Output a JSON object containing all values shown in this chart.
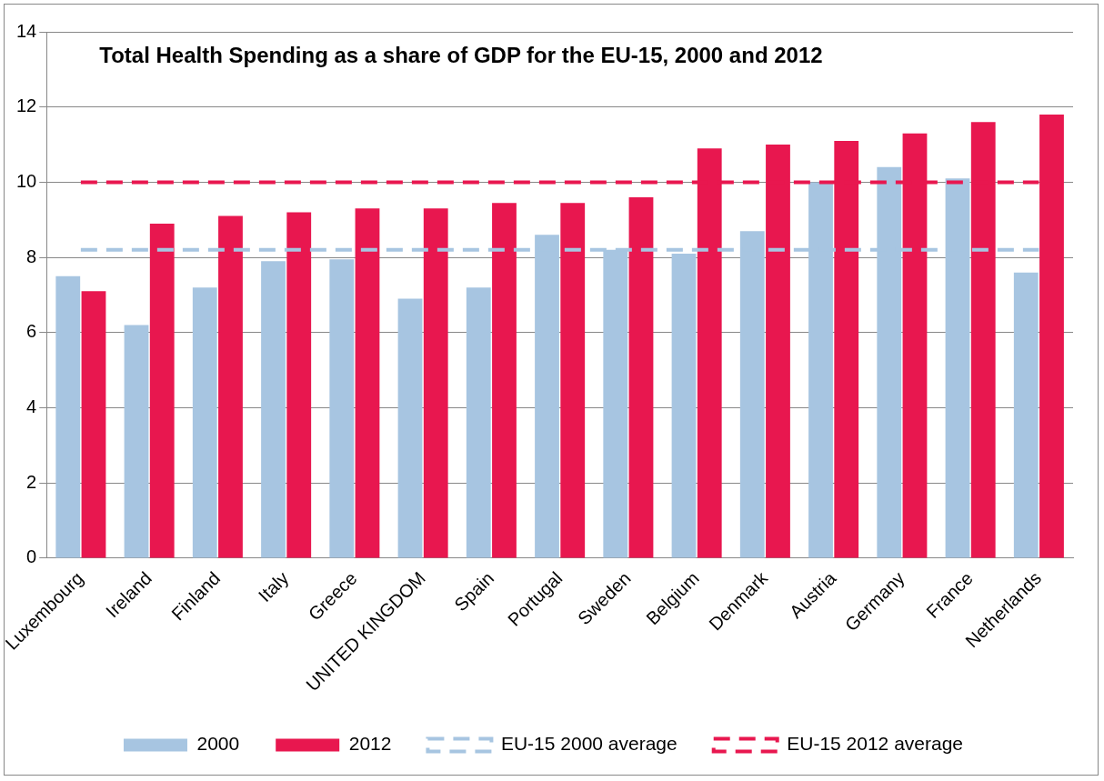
{
  "chart_data": {
    "type": "bar",
    "title": "Total Health Spending as a share of GDP for the EU-15, 2000 and 2012",
    "categories": [
      "Luxembourg",
      "Ireland",
      "Finland",
      "Italy",
      "Greece",
      "UNITED KINGDOM",
      "Spain",
      "Portugal",
      "Sweden",
      "Belgium",
      "Denmark",
      "Austria",
      "Germany",
      "France",
      "Netherlands"
    ],
    "series": [
      {
        "name": "2000",
        "color": "#a7c5e1",
        "values": [
          7.5,
          6.2,
          7.2,
          7.9,
          7.95,
          6.9,
          7.2,
          8.6,
          8.2,
          8.1,
          8.7,
          10.0,
          10.4,
          10.1,
          7.6
        ]
      },
      {
        "name": "2012",
        "color": "#e8174f",
        "values": [
          7.1,
          8.9,
          9.1,
          9.2,
          9.3,
          9.3,
          9.45,
          9.45,
          9.6,
          10.9,
          11.0,
          11.1,
          11.3,
          11.6,
          11.8
        ]
      },
      {
        "name": "EU-15 2000 average",
        "type": "line",
        "color": "#a7c5e1",
        "line_style": "dashed",
        "values": [
          8.2,
          8.2,
          8.2,
          8.2,
          8.2,
          8.2,
          8.2,
          8.2,
          8.2,
          8.2,
          8.2,
          8.2,
          8.2,
          8.2,
          8.2
        ]
      },
      {
        "name": "EU-15 2012 average",
        "type": "line",
        "color": "#e8174f",
        "line_style": "dashed",
        "values": [
          10.0,
          10.0,
          10.0,
          10.0,
          10.0,
          10.0,
          10.0,
          10.0,
          10.0,
          10.0,
          10.0,
          10.0,
          10.0,
          10.0,
          10.0
        ]
      }
    ],
    "ylim": [
      0,
      14
    ],
    "yticks": [
      0,
      2,
      4,
      6,
      8,
      10,
      12,
      14
    ],
    "grid": "y",
    "legend": "bottom",
    "marker": "none"
  }
}
